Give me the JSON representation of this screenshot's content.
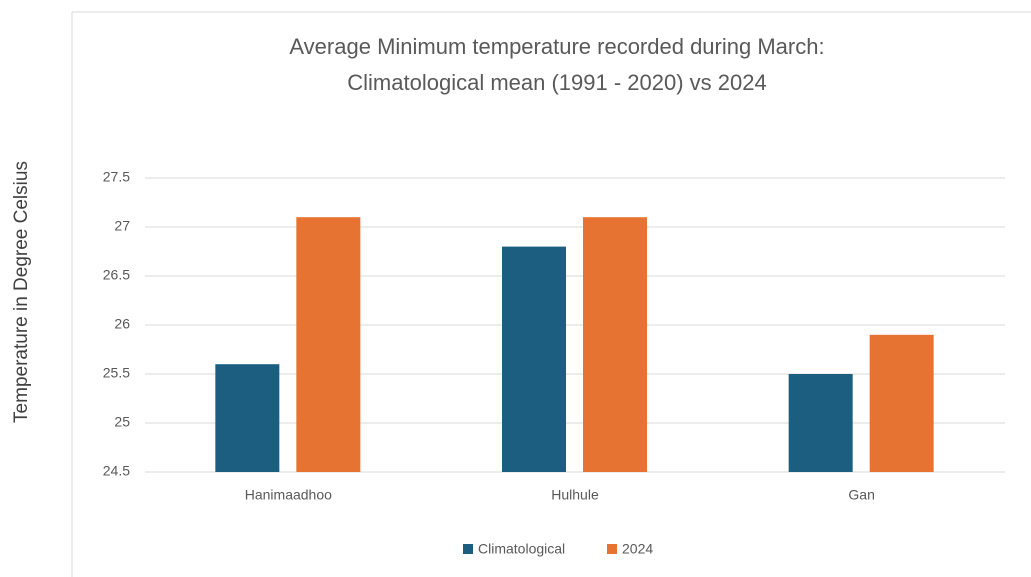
{
  "chart_data": {
    "type": "bar",
    "title": [
      "Average Minimum temperature recorded during  March:",
      "Climatological mean (1991 - 2020) vs 2024"
    ],
    "ylabel": "Temperature in Degree Celsius",
    "categories": [
      "Hanimaadhoo",
      "Hulhule",
      "Gan"
    ],
    "series": [
      {
        "name": "Climatological",
        "color": "#1b5e80",
        "values": [
          25.6,
          26.8,
          25.5
        ]
      },
      {
        "name": "2024",
        "color": "#e77332",
        "values": [
          27.1,
          27.1,
          25.9
        ]
      }
    ],
    "ylim": [
      24.5,
      27.5
    ],
    "yticks": [
      24.5,
      25,
      25.5,
      26,
      26.5,
      27,
      27.5
    ],
    "grid": true,
    "legend": "bottom"
  }
}
